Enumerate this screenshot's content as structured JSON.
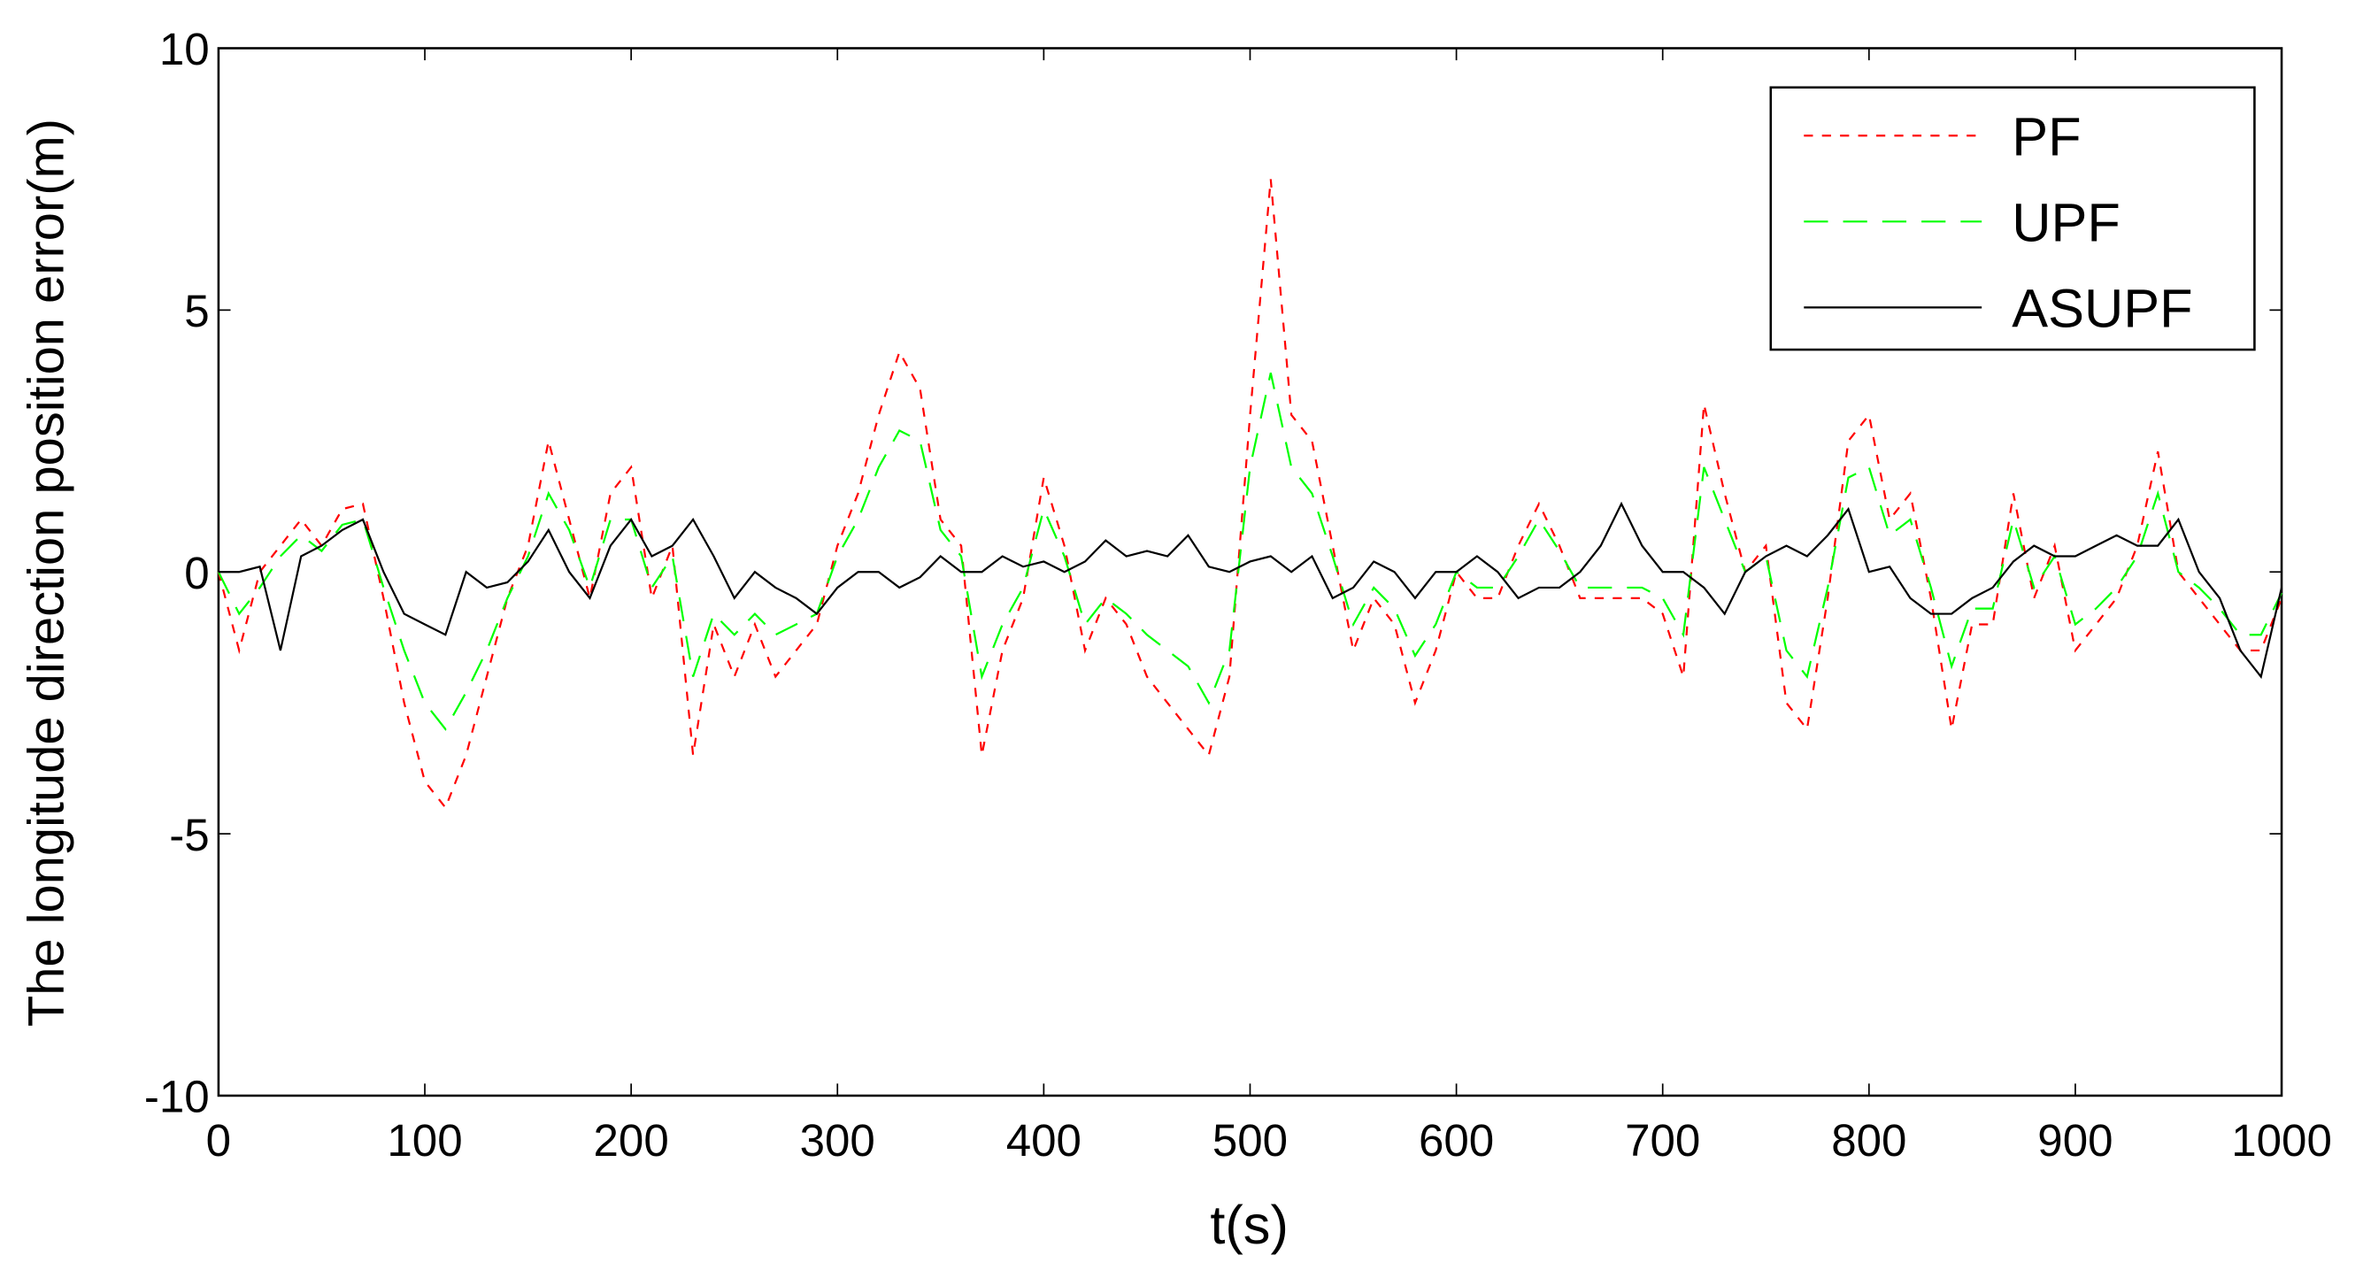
{
  "chart_data": {
    "type": "line",
    "xlabel": "t(s)",
    "ylabel": "The longitude direction position error(m)",
    "x": [
      0,
      10,
      20,
      30,
      40,
      50,
      60,
      70,
      80,
      90,
      100,
      110,
      120,
      130,
      140,
      150,
      160,
      170,
      180,
      190,
      200,
      210,
      220,
      230,
      240,
      250,
      260,
      270,
      280,
      290,
      300,
      310,
      320,
      330,
      340,
      350,
      360,
      370,
      380,
      390,
      400,
      410,
      420,
      430,
      440,
      450,
      460,
      470,
      480,
      490,
      500,
      510,
      520,
      530,
      540,
      550,
      560,
      570,
      580,
      590,
      600,
      610,
      620,
      630,
      640,
      650,
      660,
      670,
      680,
      690,
      700,
      710,
      720,
      730,
      740,
      750,
      760,
      770,
      780,
      790,
      800,
      810,
      820,
      830,
      840,
      850,
      860,
      870,
      880,
      890,
      900,
      910,
      920,
      930,
      940,
      950,
      960,
      970,
      980,
      990,
      1000
    ],
    "series": [
      {
        "name": "PF",
        "color": "#ff0000",
        "dash": "6,6",
        "values": [
          0,
          -1.5,
          0,
          0.5,
          1,
          0.5,
          1.2,
          1.3,
          -0.5,
          -2.5,
          -4,
          -4.5,
          -3.5,
          -2,
          -0.5,
          0.5,
          2.5,
          1,
          -0.5,
          1.5,
          2,
          -0.5,
          0.5,
          -3.5,
          -1,
          -2,
          -1,
          -2,
          -1.5,
          -1,
          0.5,
          1.5,
          3,
          4.2,
          3.5,
          1,
          0.5,
          -3.5,
          -1.5,
          -0.5,
          1.8,
          0.5,
          -1.5,
          -0.5,
          -1,
          -2,
          -2.5,
          -3,
          -3.5,
          -2,
          3,
          7.5,
          3,
          2.5,
          0.5,
          -1.5,
          -0.5,
          -1,
          -2.5,
          -1.5,
          0,
          -0.5,
          -0.5,
          0.5,
          1.3,
          0.5,
          -0.5,
          -0.5,
          -0.5,
          -0.5,
          -0.8,
          -2,
          3.2,
          1.5,
          0,
          0.5,
          -2.5,
          -3,
          -0.5,
          2.5,
          3,
          1,
          1.5,
          -0.5,
          -3,
          -1,
          -1,
          1.5,
          -0.5,
          0.5,
          -1.5,
          -1,
          -0.5,
          0.5,
          2.3,
          0,
          -0.5,
          -1,
          -1.5,
          -1.5,
          -0.5
        ]
      },
      {
        "name": "UPF",
        "color": "#00ff00",
        "dash": "16,10",
        "values": [
          0,
          -0.8,
          -0.3,
          0.3,
          0.7,
          0.4,
          0.9,
          1,
          -0.3,
          -1.5,
          -2.5,
          -3,
          -2.3,
          -1.5,
          -0.5,
          0.3,
          1.5,
          0.8,
          -0.3,
          1,
          1,
          -0.3,
          0.3,
          -2,
          -0.8,
          -1.2,
          -0.8,
          -1.2,
          -1,
          -0.8,
          0.3,
          1,
          2,
          2.7,
          2.5,
          0.8,
          0.3,
          -2,
          -1,
          -0.3,
          1.2,
          0.3,
          -1,
          -0.5,
          -0.8,
          -1.2,
          -1.5,
          -1.8,
          -2.5,
          -1.5,
          2,
          3.8,
          2,
          1.5,
          0.3,
          -1,
          -0.3,
          -0.7,
          -1.6,
          -1,
          0,
          -0.3,
          -0.3,
          0.3,
          1,
          0.4,
          -0.3,
          -0.3,
          -0.3,
          -0.3,
          -0.5,
          -1.2,
          2,
          1,
          0,
          0.3,
          -1.5,
          -2,
          -0.3,
          1.8,
          2,
          0.7,
          1,
          -0.3,
          -1.8,
          -0.7,
          -0.7,
          1,
          -0.3,
          0.3,
          -1,
          -0.7,
          -0.3,
          0.3,
          1.5,
          0,
          -0.3,
          -0.7,
          -1.2,
          -1.2,
          -0.4
        ]
      },
      {
        "name": "ASUPF",
        "color": "#000000",
        "dash": "none",
        "values": [
          0,
          0,
          0.1,
          -1.5,
          0.3,
          0.5,
          0.8,
          1,
          0,
          -0.8,
          -1,
          -1.2,
          0,
          -0.3,
          -0.2,
          0.2,
          0.8,
          0,
          -0.5,
          0.5,
          1,
          0.3,
          0.5,
          1,
          0.3,
          -0.5,
          0,
          -0.3,
          -0.5,
          -0.8,
          -0.3,
          0,
          0,
          -0.3,
          -0.1,
          0.3,
          0,
          0,
          0.3,
          0.1,
          0.2,
          0,
          0.2,
          0.6,
          0.3,
          0.4,
          0.3,
          0.7,
          0.1,
          0,
          0.2,
          0.3,
          0,
          0.3,
          -0.5,
          -0.3,
          0.2,
          0,
          -0.5,
          0,
          0,
          0.3,
          0,
          -0.5,
          -0.3,
          -0.3,
          0,
          0.5,
          1.3,
          0.5,
          0,
          0,
          -0.3,
          -0.8,
          0,
          0.3,
          0.5,
          0.3,
          0.7,
          1.2,
          0,
          0.1,
          -0.5,
          -0.8,
          -0.8,
          -0.5,
          -0.3,
          0.2,
          0.5,
          0.3,
          0.3,
          0.5,
          0.7,
          0.5,
          0.5,
          1,
          0,
          -0.5,
          -1.5,
          -2,
          -0.3
        ]
      }
    ],
    "xlim": [
      0,
      1000
    ],
    "xticks": [
      0,
      100,
      200,
      300,
      400,
      500,
      600,
      700,
      800,
      900,
      1000
    ],
    "ylim": [
      -10,
      10
    ],
    "yticks": [
      -10,
      -5,
      0,
      5,
      10
    ],
    "legend": "upper right"
  }
}
